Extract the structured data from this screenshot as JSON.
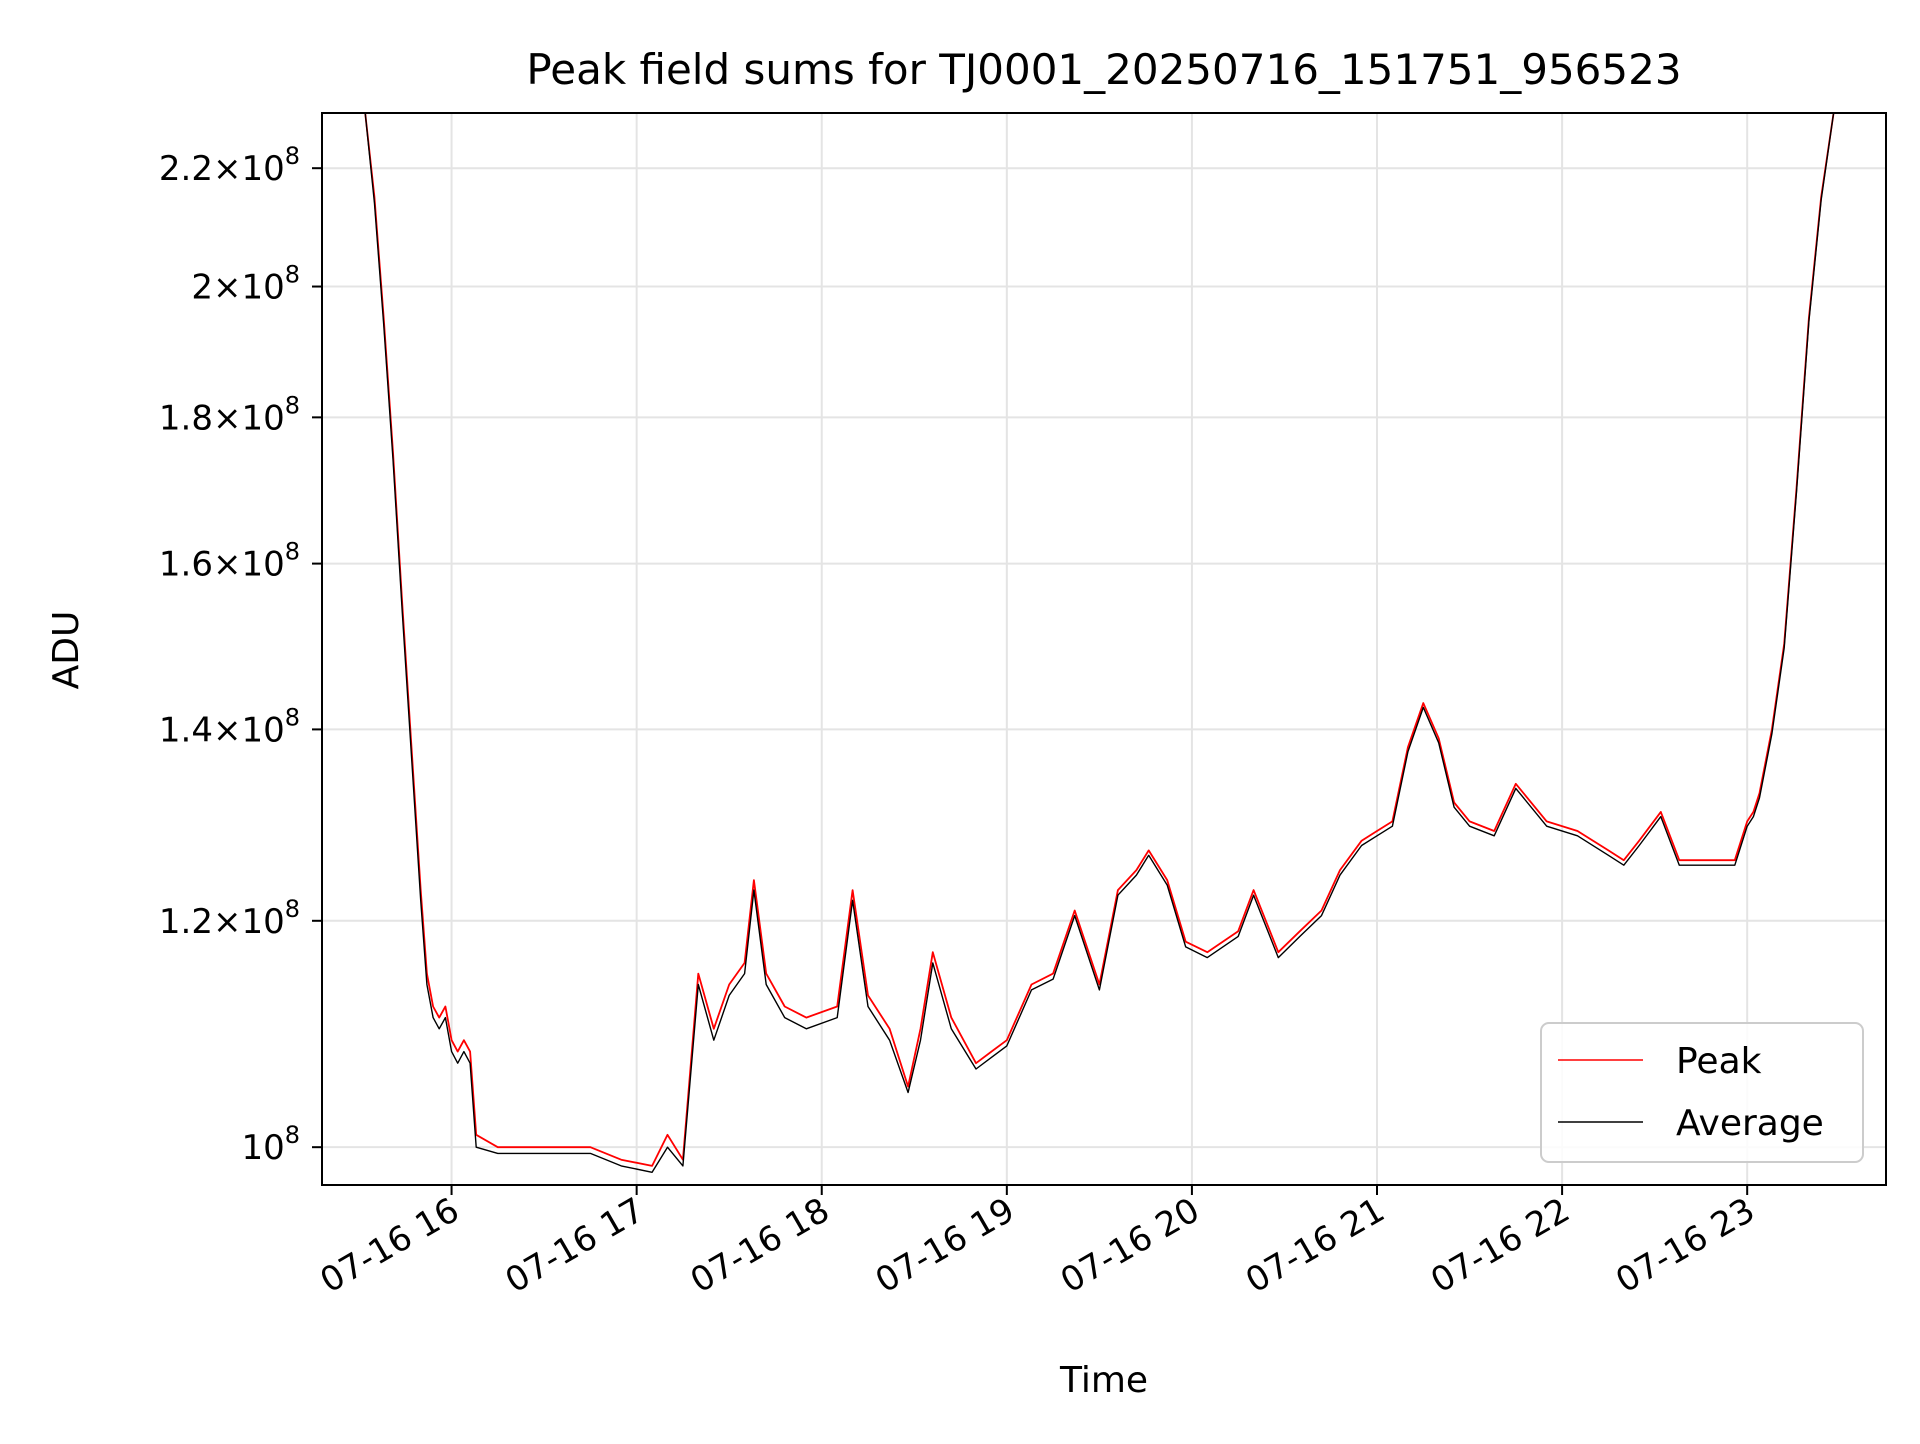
{
  "chart_data": {
    "type": "line",
    "title": "Peak field sums for TJ0001_20250716_151751_956523",
    "xlabel": "Time",
    "ylabel": "ADU",
    "y_scale": "log",
    "grid": true,
    "legend_position": "bottom-right",
    "xlim": [
      "2025-07-16 15:18",
      "2025-07-16 23:45"
    ],
    "ylim": [
      97000000,
      230000000
    ],
    "x_ticks": [
      "07-16 16",
      "07-16 17",
      "07-16 18",
      "07-16 19",
      "07-16 20",
      "07-16 21",
      "07-16 22",
      "07-16 23"
    ],
    "x_tick_times": [
      "2025-07-16 16:00",
      "2025-07-16 17:00",
      "2025-07-16 18:00",
      "2025-07-16 19:00",
      "2025-07-16 20:00",
      "2025-07-16 21:00",
      "2025-07-16 22:00",
      "2025-07-16 23:00"
    ],
    "y_ticks": [
      {
        "value": 100000000,
        "mantissa": "",
        "exponent": "8",
        "base": "10"
      },
      {
        "value": 120000000,
        "mantissa": "1.2",
        "exponent": "8",
        "base": "10"
      },
      {
        "value": 140000000,
        "mantissa": "1.4",
        "exponent": "8",
        "base": "10"
      },
      {
        "value": 160000000,
        "mantissa": "1.6",
        "exponent": "8",
        "base": "10"
      },
      {
        "value": 180000000,
        "mantissa": "1.8",
        "exponent": "8",
        "base": "10"
      },
      {
        "value": 200000000,
        "mantissa": "2",
        "exponent": "8",
        "base": "10"
      },
      {
        "value": 220000000,
        "mantissa": "2.2",
        "exponent": "8",
        "base": "10"
      }
    ],
    "series": [
      {
        "name": "Peak",
        "color": "#ff0000",
        "x": [
          "2025-07-16 15:32",
          "2025-07-16 15:35",
          "2025-07-16 15:38",
          "2025-07-16 15:41",
          "2025-07-16 15:44",
          "2025-07-16 15:47",
          "2025-07-16 15:50",
          "2025-07-16 15:52",
          "2025-07-16 15:54",
          "2025-07-16 15:56",
          "2025-07-16 15:58",
          "2025-07-16 16:00",
          "2025-07-16 16:02",
          "2025-07-16 16:04",
          "2025-07-16 16:06",
          "2025-07-16 16:08",
          "2025-07-16 16:15",
          "2025-07-16 16:25",
          "2025-07-16 16:35",
          "2025-07-16 16:45",
          "2025-07-16 16:55",
          "2025-07-16 17:05",
          "2025-07-16 17:10",
          "2025-07-16 17:15",
          "2025-07-16 17:20",
          "2025-07-16 17:25",
          "2025-07-16 17:30",
          "2025-07-16 17:35",
          "2025-07-16 17:38",
          "2025-07-16 17:42",
          "2025-07-16 17:48",
          "2025-07-16 17:55",
          "2025-07-16 18:05",
          "2025-07-16 18:10",
          "2025-07-16 18:15",
          "2025-07-16 18:22",
          "2025-07-16 18:28",
          "2025-07-16 18:32",
          "2025-07-16 18:36",
          "2025-07-16 18:42",
          "2025-07-16 18:50",
          "2025-07-16 18:55",
          "2025-07-16 19:00",
          "2025-07-16 19:08",
          "2025-07-16 19:15",
          "2025-07-16 19:22",
          "2025-07-16 19:30",
          "2025-07-16 19:36",
          "2025-07-16 19:42",
          "2025-07-16 19:46",
          "2025-07-16 19:52",
          "2025-07-16 19:58",
          "2025-07-16 20:05",
          "2025-07-16 20:15",
          "2025-07-16 20:20",
          "2025-07-16 20:28",
          "2025-07-16 20:35",
          "2025-07-16 20:42",
          "2025-07-16 20:48",
          "2025-07-16 20:55",
          "2025-07-16 21:00",
          "2025-07-16 21:05",
          "2025-07-16 21:10",
          "2025-07-16 21:15",
          "2025-07-16 21:20",
          "2025-07-16 21:25",
          "2025-07-16 21:30",
          "2025-07-16 21:38",
          "2025-07-16 21:45",
          "2025-07-16 21:55",
          "2025-07-16 22:05",
          "2025-07-16 22:15",
          "2025-07-16 22:20",
          "2025-07-16 22:25",
          "2025-07-16 22:32",
          "2025-07-16 22:38",
          "2025-07-16 22:45",
          "2025-07-16 22:52",
          "2025-07-16 22:56",
          "2025-07-16 23:00",
          "2025-07-16 23:02",
          "2025-07-16 23:04",
          "2025-07-16 23:08",
          "2025-07-16 23:12",
          "2025-07-16 23:16",
          "2025-07-16 23:20",
          "2025-07-16 23:24",
          "2025-07-16 23:28"
        ],
        "y": [
          230000000,
          215000000,
          195000000,
          175000000,
          155000000,
          138000000,
          123000000,
          115000000,
          112000000,
          111000000,
          112000000,
          109000000,
          108000000,
          109000000,
          108000000,
          101000000,
          100000000,
          100000000,
          100000000,
          100000000,
          99000000,
          98500000,
          101000000,
          99000000,
          115000000,
          110000000,
          114000000,
          116000000,
          124000000,
          115000000,
          112000000,
          111000000,
          112000000,
          123000000,
          113000000,
          110000000,
          105000000,
          110000000,
          117000000,
          111000000,
          107000000,
          108000000,
          109000000,
          114000000,
          115000000,
          121000000,
          114000000,
          123000000,
          125000000,
          127000000,
          124000000,
          118000000,
          117000000,
          119000000,
          123000000,
          117000000,
          119000000,
          121000000,
          125000000,
          128000000,
          129000000,
          130000000,
          138000000,
          143000000,
          139000000,
          132000000,
          130000000,
          129000000,
          134000000,
          130000000,
          129000000,
          127000000,
          126000000,
          128000000,
          131000000,
          126000000,
          126000000,
          126000000,
          126000000,
          130000000,
          131000000,
          133000000,
          140000000,
          150000000,
          170000000,
          195000000,
          215000000,
          230000000
        ]
      },
      {
        "name": "Average",
        "color": "#000000",
        "x": [
          "2025-07-16 15:32",
          "2025-07-16 15:35",
          "2025-07-16 15:38",
          "2025-07-16 15:41",
          "2025-07-16 15:44",
          "2025-07-16 15:47",
          "2025-07-16 15:50",
          "2025-07-16 15:52",
          "2025-07-16 15:54",
          "2025-07-16 15:56",
          "2025-07-16 15:58",
          "2025-07-16 16:00",
          "2025-07-16 16:02",
          "2025-07-16 16:04",
          "2025-07-16 16:06",
          "2025-07-16 16:08",
          "2025-07-16 16:15",
          "2025-07-16 16:25",
          "2025-07-16 16:35",
          "2025-07-16 16:45",
          "2025-07-16 16:55",
          "2025-07-16 17:05",
          "2025-07-16 17:10",
          "2025-07-16 17:15",
          "2025-07-16 17:20",
          "2025-07-16 17:25",
          "2025-07-16 17:30",
          "2025-07-16 17:35",
          "2025-07-16 17:38",
          "2025-07-16 17:42",
          "2025-07-16 17:48",
          "2025-07-16 17:55",
          "2025-07-16 18:05",
          "2025-07-16 18:10",
          "2025-07-16 18:15",
          "2025-07-16 18:22",
          "2025-07-16 18:28",
          "2025-07-16 18:32",
          "2025-07-16 18:36",
          "2025-07-16 18:42",
          "2025-07-16 18:50",
          "2025-07-16 18:55",
          "2025-07-16 19:00",
          "2025-07-16 19:08",
          "2025-07-16 19:15",
          "2025-07-16 19:22",
          "2025-07-16 19:30",
          "2025-07-16 19:36",
          "2025-07-16 19:42",
          "2025-07-16 19:46",
          "2025-07-16 19:52",
          "2025-07-16 19:58",
          "2025-07-16 20:05",
          "2025-07-16 20:15",
          "2025-07-16 20:20",
          "2025-07-16 20:28",
          "2025-07-16 20:35",
          "2025-07-16 20:42",
          "2025-07-16 20:48",
          "2025-07-16 20:55",
          "2025-07-16 21:00",
          "2025-07-16 21:05",
          "2025-07-16 21:10",
          "2025-07-16 21:15",
          "2025-07-16 21:20",
          "2025-07-16 21:25",
          "2025-07-16 21:30",
          "2025-07-16 21:38",
          "2025-07-16 21:45",
          "2025-07-16 21:55",
          "2025-07-16 22:05",
          "2025-07-16 22:15",
          "2025-07-16 22:20",
          "2025-07-16 22:25",
          "2025-07-16 22:32",
          "2025-07-16 22:38",
          "2025-07-16 22:45",
          "2025-07-16 22:52",
          "2025-07-16 22:56",
          "2025-07-16 23:00",
          "2025-07-16 23:02",
          "2025-07-16 23:04",
          "2025-07-16 23:08",
          "2025-07-16 23:12",
          "2025-07-16 23:16",
          "2025-07-16 23:20",
          "2025-07-16 23:24",
          "2025-07-16 23:28"
        ],
        "y": [
          230000000,
          214000000,
          194000000,
          174000000,
          154000000,
          137000000,
          122000000,
          114000000,
          111000000,
          110000000,
          111000000,
          108000000,
          107000000,
          108000000,
          107000000,
          100000000,
          99500000,
          99500000,
          99500000,
          99500000,
          98500000,
          98000000,
          100000000,
          98500000,
          114000000,
          109000000,
          113000000,
          115000000,
          123000000,
          114000000,
          111000000,
          110000000,
          111000000,
          122000000,
          112000000,
          109000000,
          104500000,
          109000000,
          116000000,
          110000000,
          106500000,
          107500000,
          108500000,
          113500000,
          114500000,
          120500000,
          113500000,
          122500000,
          124500000,
          126500000,
          123500000,
          117500000,
          116500000,
          118500000,
          122500000,
          116500000,
          118500000,
          120500000,
          124500000,
          127500000,
          128500000,
          129500000,
          137500000,
          142500000,
          138500000,
          131500000,
          129500000,
          128500000,
          133500000,
          129500000,
          128500000,
          126500000,
          125500000,
          127500000,
          130500000,
          125500000,
          125500000,
          125500000,
          125500000,
          129500000,
          130500000,
          132500000,
          139500000,
          149500000,
          169500000,
          194500000,
          214500000,
          230000000
        ]
      }
    ]
  }
}
